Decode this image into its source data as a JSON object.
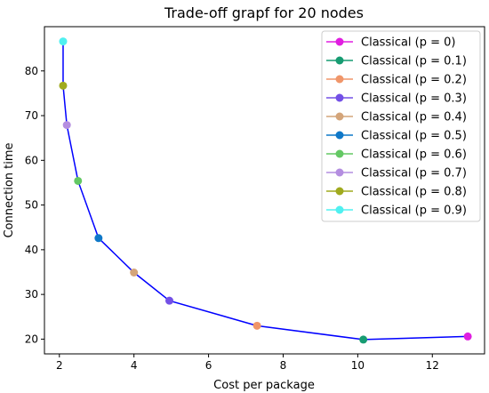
{
  "chart_data": {
    "type": "line",
    "title": "Trade-off grapf for 20 nodes",
    "xlabel": "Cost per package",
    "ylabel": "Connection time",
    "xlim": [
      1.6,
      13.4
    ],
    "ylim": [
      16.7,
      89.9
    ],
    "xticks": [
      2,
      4,
      6,
      8,
      10,
      12
    ],
    "yticks": [
      20,
      30,
      40,
      50,
      60,
      70,
      80
    ],
    "grid": false,
    "legend_position": "top-right",
    "line_color": "#0000ff",
    "line": {
      "x": [
        12.95,
        10.15,
        7.3,
        4.95,
        4.0,
        3.05,
        2.5,
        2.2,
        2.1,
        2.1
      ],
      "y": [
        20.6,
        19.9,
        23.0,
        28.6,
        34.9,
        42.6,
        55.4,
        67.9,
        76.7,
        86.6
      ]
    },
    "series": [
      {
        "name": "Classical (p = 0)",
        "color": "#e01ee0",
        "x": 12.95,
        "y": 20.6
      },
      {
        "name": "Classical (p = 0.1)",
        "color": "#179c72",
        "x": 10.15,
        "y": 19.9
      },
      {
        "name": "Classical (p = 0.2)",
        "color": "#f0966a",
        "x": 7.3,
        "y": 23.0
      },
      {
        "name": "Classical (p = 0.3)",
        "color": "#7350e6",
        "x": 4.95,
        "y": 28.6
      },
      {
        "name": "Classical (p = 0.4)",
        "color": "#d4a57a",
        "x": 4.0,
        "y": 34.9
      },
      {
        "name": "Classical (p = 0.5)",
        "color": "#0f78c8",
        "x": 3.05,
        "y": 42.6
      },
      {
        "name": "Classical (p = 0.6)",
        "color": "#64c864",
        "x": 2.5,
        "y": 55.4
      },
      {
        "name": "Classical (p = 0.7)",
        "color": "#b48ee0",
        "x": 2.2,
        "y": 67.9
      },
      {
        "name": "Classical (p = 0.8)",
        "color": "#a0aa1e",
        "x": 2.1,
        "y": 76.7
      },
      {
        "name": "Classical (p = 0.9)",
        "color": "#50f0f0",
        "x": 2.1,
        "y": 86.6
      }
    ]
  }
}
